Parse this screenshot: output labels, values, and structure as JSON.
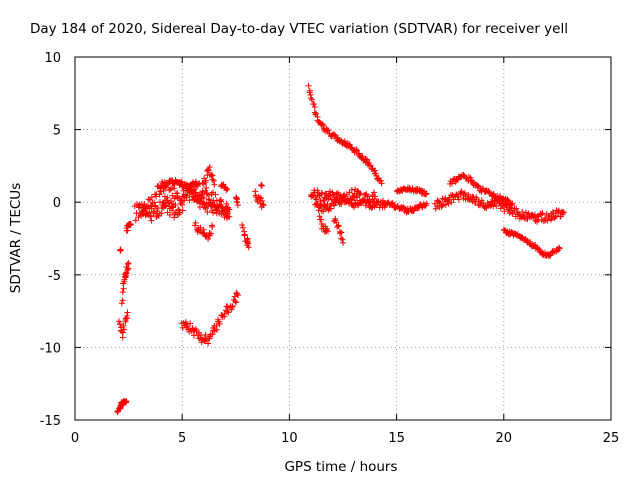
{
  "chart_data": {
    "type": "scatter",
    "title": "Day 184 of 2020, Sidereal Day-to-day VTEC variation (SDTVAR) for receiver yell",
    "xlabel": "GPS time / hours",
    "ylabel": "SDTVAR / TECUs",
    "xlim": [
      0,
      25
    ],
    "ylim": [
      -15,
      10
    ],
    "xticks": [
      0,
      5,
      10,
      15,
      20,
      25
    ],
    "yticks": [
      -15,
      -10,
      -5,
      0,
      5,
      10
    ],
    "xtick_labels": [
      "0",
      "5",
      "10",
      "15",
      "20",
      "25"
    ],
    "ytick_labels": [
      "-15",
      "-10",
      "-5",
      "0",
      "5",
      "10"
    ],
    "grid": true,
    "marker": "+",
    "series_color": "#ff0000",
    "segments": [
      {
        "x": [
          2.0,
          2.1,
          2.15,
          2.2,
          2.3,
          2.4
        ],
        "y": [
          -14.4,
          -14.2,
          -13.9,
          -13.8,
          -13.8,
          -13.7
        ],
        "noise": 0.1
      },
      {
        "x": [
          2.05,
          2.2,
          2.35,
          2.45
        ],
        "y": [
          -8.4,
          -9.1,
          -8.2,
          -7.6
        ],
        "noise": 0.3
      },
      {
        "x": [
          2.1
        ],
        "y": [
          -3.3
        ],
        "noise": 0.05
      },
      {
        "x": [
          2.2,
          2.3,
          2.4,
          2.5
        ],
        "y": [
          -6.8,
          -5.3,
          -4.8,
          -4.2
        ],
        "noise": 0.25
      },
      {
        "x": [
          2.4,
          2.5,
          2.6
        ],
        "y": [
          -1.9,
          -1.7,
          -1.5
        ],
        "noise": 0.2
      },
      {
        "x": [
          2.8,
          3.2,
          3.6,
          4.0,
          4.4,
          4.8,
          5.2,
          5.6,
          6.0,
          6.4,
          6.8,
          7.2
        ],
        "y": [
          -0.8,
          -0.5,
          0.2,
          0.6,
          0.4,
          0.6,
          0.8,
          0.5,
          0.4,
          0.2,
          -0.2,
          -0.5
        ],
        "noise": 0.65
      },
      {
        "x": [
          3.0,
          3.6,
          4.2,
          4.8,
          5.4,
          6.0,
          6.6,
          7.2
        ],
        "y": [
          -0.3,
          -0.9,
          -0.2,
          -0.8,
          0.9,
          -0.2,
          -0.4,
          -1.0
        ],
        "noise": 0.5
      },
      {
        "x": [
          4.0,
          4.6,
          5.2,
          5.8
        ],
        "y": [
          1.2,
          1.4,
          1.1,
          1.3
        ],
        "noise": 0.2
      },
      {
        "x": [
          5.6,
          5.9,
          6.2,
          6.4
        ],
        "y": [
          -1.6,
          -2.0,
          -2.3,
          -1.7
        ],
        "noise": 0.3
      },
      {
        "x": [
          5.9,
          6.1,
          6.3,
          6.5
        ],
        "y": [
          0.8,
          1.8,
          2.2,
          1.2
        ],
        "noise": 0.3
      },
      {
        "x": [
          6.8,
          7.1
        ],
        "y": [
          1.2,
          0.9
        ],
        "noise": 0.15
      },
      {
        "x": [
          7.8,
          8.0,
          8.1
        ],
        "y": [
          -1.8,
          -2.6,
          -3.1
        ],
        "noise": 0.3
      },
      {
        "x": [
          7.5,
          7.6
        ],
        "y": [
          0.5,
          -0.2
        ],
        "noise": 0.2
      },
      {
        "x": [
          8.4,
          8.6,
          8.8
        ],
        "y": [
          0.6,
          0.1,
          -0.2
        ],
        "noise": 0.3
      },
      {
        "x": [
          8.7
        ],
        "y": [
          1.1
        ],
        "noise": 0.1
      },
      {
        "x": [
          5.0,
          5.3,
          5.6,
          5.9,
          6.2,
          6.5,
          6.8,
          7.1,
          7.4,
          7.6
        ],
        "y": [
          -8.3,
          -8.6,
          -9.0,
          -9.3,
          -9.4,
          -8.8,
          -8.0,
          -7.4,
          -6.9,
          -6.4
        ],
        "noise": 0.35
      },
      {
        "x": [
          10.9,
          11.1,
          11.3,
          11.6,
          12.0,
          12.4,
          12.8,
          13.2,
          13.6,
          14.0,
          14.3
        ],
        "y": [
          7.9,
          6.8,
          5.8,
          5.1,
          4.6,
          4.2,
          3.9,
          3.4,
          2.8,
          2.0,
          1.3
        ],
        "noise": 0.15
      },
      {
        "x": [
          11.0,
          11.5,
          12.0,
          12.5,
          13.0,
          13.5,
          14.0
        ],
        "y": [
          0.7,
          0.3,
          0.5,
          0.1,
          0.6,
          0.2,
          0.4
        ],
        "noise": 0.35
      },
      {
        "x": [
          11.2,
          11.6,
          12.0,
          12.5,
          13.0,
          13.5,
          14.0,
          14.5
        ],
        "y": [
          -0.2,
          -0.5,
          -0.2,
          0.2,
          -0.1,
          0.0,
          -0.2,
          -0.1
        ],
        "noise": 0.25
      },
      {
        "x": [
          11.4,
          11.6,
          11.8
        ],
        "y": [
          -1.2,
          -1.8,
          -2.0
        ],
        "noise": 0.25
      },
      {
        "x": [
          12.1,
          12.3,
          12.5
        ],
        "y": [
          -1.2,
          -1.8,
          -2.8
        ],
        "noise": 0.3
      },
      {
        "x": [
          14.5,
          15.0,
          15.5,
          16.0,
          16.4
        ],
        "y": [
          0.0,
          -0.3,
          -0.6,
          -0.4,
          -0.1
        ],
        "noise": 0.15
      },
      {
        "x": [
          15.0,
          15.5,
          16.0,
          16.4
        ],
        "y": [
          0.8,
          0.9,
          0.8,
          0.6
        ],
        "noise": 0.12
      },
      {
        "x": [
          16.8,
          17.2,
          17.6,
          18.0,
          18.4,
          18.8,
          19.2,
          19.6,
          20.0,
          20.4,
          20.8,
          21.2,
          21.6,
          22.0,
          22.4,
          22.8
        ],
        "y": [
          -0.2,
          0.0,
          0.3,
          0.5,
          0.3,
          0.0,
          -0.2,
          0.0,
          -0.3,
          -0.6,
          -0.9,
          -1.0,
          -1.1,
          -1.0,
          -0.9,
          -0.7
        ],
        "noise": 0.3
      },
      {
        "x": [
          17.5,
          18.0,
          18.4,
          18.8,
          19.2,
          19.6,
          20.0,
          20.4
        ],
        "y": [
          1.3,
          1.8,
          1.6,
          1.0,
          0.7,
          0.4,
          0.2,
          -0.1
        ],
        "noise": 0.15
      },
      {
        "x": [
          20.0,
          20.5,
          21.0,
          21.5,
          21.8,
          22.0,
          22.3,
          22.6
        ],
        "y": [
          -2.0,
          -2.2,
          -2.6,
          -3.1,
          -3.5,
          -3.7,
          -3.5,
          -3.2
        ],
        "noise": 0.12
      }
    ]
  }
}
